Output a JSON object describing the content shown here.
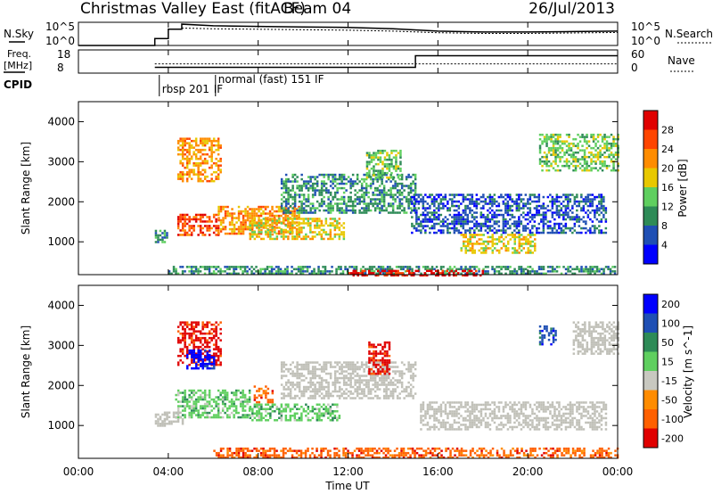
{
  "header": {
    "radar": "Christmas Valley East (fitACF)",
    "beam": "Beam 04",
    "date": "26/Jul/2013"
  },
  "top_panels": {
    "nsky_label": "N.Sky",
    "nsky_ticks": [
      "10^5",
      "10^0"
    ],
    "nsearch_label": "N.Search",
    "nsearch_ticks": [
      "10^5",
      "10^0"
    ],
    "freq_label_line1": "Freq.",
    "freq_label_line2": "[MHz]",
    "freq_ticks": [
      "18",
      "8"
    ],
    "nave_label": "Nave",
    "nave_ticks": [
      "60",
      "0"
    ],
    "cpid_label": "CPID",
    "cpid_segments": [
      {
        "text": "rbsp 201",
        "start_hour": 3.6
      },
      {
        "text": "IF",
        "start_hour": 5.9
      },
      {
        "text": "normal (fast) 151 IF",
        "start_hour": 6.1
      }
    ]
  },
  "colors": {
    "power": [
      "#0000ff",
      "#1f4fb4",
      "#2e8b57",
      "#5fcf5f",
      "#e8c800",
      "#ff8c00",
      "#ff4500",
      "#e00000"
    ],
    "velocity": [
      "#0000ff",
      "#1f4fb4",
      "#2e8b57",
      "#5fcf5f",
      "#c8c8c0",
      "#ff8c00",
      "#ff6000",
      "#e00000"
    ],
    "ground_scatter": "#c0c0b8"
  },
  "chart_data": [
    {
      "type": "line",
      "panel": "Noise (N.Sky / N.Search)",
      "x_unit": "hours UT",
      "series": [
        {
          "name": "N.Sky",
          "x": [
            0,
            3.4,
            3.4,
            4.0,
            4.0,
            4.6,
            4.6,
            6,
            8,
            10,
            12,
            14,
            16,
            18,
            20,
            22,
            24
          ],
          "y": [
            0,
            0,
            0.3,
            0.3,
            0.7,
            0.7,
            0.92,
            0.85,
            0.82,
            0.8,
            0.78,
            0.72,
            0.62,
            0.58,
            0.58,
            0.6,
            0.62
          ]
        },
        {
          "name": "N.Search",
          "x": [
            4.6,
            6,
            8,
            10,
            12,
            14,
            16,
            18,
            20,
            22,
            24
          ],
          "y": [
            0.75,
            0.72,
            0.7,
            0.68,
            0.66,
            0.62,
            0.55,
            0.52,
            0.52,
            0.54,
            0.56
          ]
        }
      ]
    },
    {
      "type": "line",
      "panel": "Freq. / Nave",
      "x_unit": "hours UT",
      "series": [
        {
          "name": "Freq.",
          "x": [
            3.4,
            15.0,
            15.0,
            24.0
          ],
          "y": [
            10.5,
            10.5,
            15.5,
            15.5
          ]
        },
        {
          "name": "Nave",
          "x": [
            3.4,
            24.0
          ],
          "y": [
            12,
            12
          ]
        }
      ]
    },
    {
      "type": "heatmap",
      "title": "Power",
      "xlabel": "Time UT",
      "ylabel": "Slant Range [km]",
      "xlim": [
        0,
        24
      ],
      "ylim": [
        180,
        4500
      ],
      "xticks": [
        "00:00",
        "04:00",
        "08:00",
        "12:00",
        "16:00",
        "20:00",
        "00:00"
      ],
      "yticks": [
        1000,
        2000,
        3000,
        4000
      ],
      "colorbar": {
        "label": "Power [dB]",
        "ticks": [
          4,
          8,
          12,
          16,
          20,
          24,
          28
        ],
        "range": [
          0,
          32
        ]
      },
      "regions": [
        {
          "t0": 3.4,
          "t1": 3.9,
          "r0": 1000,
          "r1": 1300,
          "v": 8
        },
        {
          "t0": 4.4,
          "t1": 6.3,
          "r0": 2500,
          "r1": 3600,
          "v": 20
        },
        {
          "t0": 4.4,
          "t1": 6.2,
          "r0": 1150,
          "r1": 1700,
          "v": 26
        },
        {
          "t0": 6.2,
          "t1": 9.8,
          "r0": 1200,
          "r1": 1900,
          "v": 22
        },
        {
          "t0": 7.6,
          "t1": 11.8,
          "r0": 1050,
          "r1": 1600,
          "v": 18
        },
        {
          "t0": 9.0,
          "t1": 15.0,
          "r0": 1700,
          "r1": 2700,
          "v": 8
        },
        {
          "t0": 12.8,
          "t1": 14.3,
          "r0": 2600,
          "r1": 3300,
          "v": 14
        },
        {
          "t0": 14.8,
          "t1": 23.5,
          "r0": 1200,
          "r1": 2200,
          "v": 6
        },
        {
          "t0": 17.0,
          "t1": 20.3,
          "r0": 700,
          "r1": 1200,
          "v": 16
        },
        {
          "t0": 20.5,
          "t1": 24.0,
          "r0": 2800,
          "r1": 3700,
          "v": 12
        },
        {
          "t0": 4.0,
          "t1": 24.0,
          "r0": 180,
          "r1": 400,
          "v": 10
        },
        {
          "t0": 12.0,
          "t1": 18.0,
          "r0": 180,
          "r1": 300,
          "v": 28
        }
      ]
    },
    {
      "type": "heatmap",
      "title": "Velocity",
      "xlabel": "Time UT",
      "ylabel": "Slant Range [km]",
      "xlim": [
        0,
        24
      ],
      "ylim": [
        180,
        4500
      ],
      "xticks": [
        "00:00",
        "04:00",
        "08:00",
        "12:00",
        "16:00",
        "20:00",
        "00:00"
      ],
      "yticks": [
        1000,
        2000,
        3000,
        4000
      ],
      "colorbar": {
        "label": "Velocity [m s^-1]",
        "ticks": [
          200,
          100,
          50,
          15,
          -15,
          -50,
          -100,
          -200
        ]
      },
      "regions": [
        {
          "t0": 3.4,
          "t1": 3.9,
          "r0": 1000,
          "r1": 1300,
          "v": "gs"
        },
        {
          "t0": 4.4,
          "t1": 6.3,
          "r0": 2500,
          "r1": 3600,
          "v": -200
        },
        {
          "t0": 4.8,
          "t1": 6.0,
          "r0": 2400,
          "r1": 2900,
          "v": 200
        },
        {
          "t0": 4.3,
          "t1": 7.6,
          "r0": 1200,
          "r1": 1900,
          "v": 40
        },
        {
          "t0": 7.6,
          "t1": 11.6,
          "r0": 1150,
          "r1": 1550,
          "v": 40
        },
        {
          "t0": 7.8,
          "t1": 8.6,
          "r0": 1600,
          "r1": 2000,
          "v": -60
        },
        {
          "t0": 9.0,
          "t1": 15.0,
          "r0": 1700,
          "r1": 2600,
          "v": "gs"
        },
        {
          "t0": 12.9,
          "t1": 13.8,
          "r0": 2300,
          "r1": 3100,
          "v": -200
        },
        {
          "t0": 15.2,
          "t1": 23.5,
          "r0": 900,
          "r1": 1600,
          "v": "gs"
        },
        {
          "t0": 20.5,
          "t1": 21.2,
          "r0": 3000,
          "r1": 3500,
          "v": 180
        },
        {
          "t0": 22.0,
          "t1": 24.0,
          "r0": 2800,
          "r1": 3600,
          "v": "gs"
        },
        {
          "t0": 6.0,
          "t1": 24.0,
          "r0": 180,
          "r1": 450,
          "v": -60
        },
        {
          "t0": 3.6,
          "t1": 4.6,
          "r0": 1050,
          "r1": 1350,
          "v": "gs"
        }
      ]
    }
  ],
  "xaxis_title": "Time UT"
}
